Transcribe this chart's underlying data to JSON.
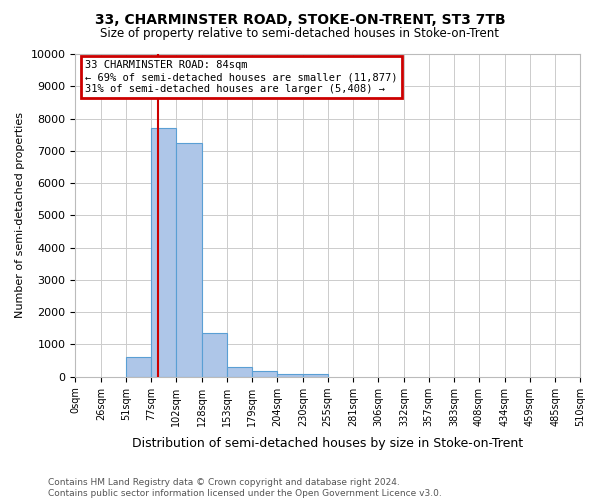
{
  "title": "33, CHARMINSTER ROAD, STOKE-ON-TRENT, ST3 7TB",
  "subtitle": "Size of property relative to semi-detached houses in Stoke-on-Trent",
  "xlabel": "Distribution of semi-detached houses by size in Stoke-on-Trent",
  "ylabel": "Number of semi-detached properties",
  "annotation_line1": "33 CHARMINSTER ROAD: 84sqm",
  "annotation_line2": "← 69% of semi-detached houses are smaller (11,877)",
  "annotation_line3": "31% of semi-detached houses are larger (5,408) →",
  "footnote1": "Contains HM Land Registry data © Crown copyright and database right 2024.",
  "footnote2": "Contains public sector information licensed under the Open Government Licence v3.0.",
  "property_size": 84,
  "bar_edges": [
    0,
    26,
    51,
    77,
    102,
    128,
    153,
    179,
    204,
    230,
    255,
    281,
    306,
    332,
    357,
    383,
    408,
    434,
    459,
    485,
    510
  ],
  "bar_heights": [
    0,
    0,
    600,
    7700,
    7250,
    1350,
    300,
    170,
    80,
    70,
    0,
    0,
    0,
    0,
    0,
    0,
    0,
    0,
    0,
    0
  ],
  "bar_color": "#aec6e8",
  "bar_edge_color": "#5a9fd4",
  "vline_color": "#cc0000",
  "annotation_box_color": "#cc0000",
  "background_color": "#ffffff",
  "grid_color": "#cccccc",
  "ylim": [
    0,
    10000
  ],
  "yticks": [
    0,
    1000,
    2000,
    3000,
    4000,
    5000,
    6000,
    7000,
    8000,
    9000,
    10000
  ],
  "xtick_labels": [
    "0sqm",
    "26sqm",
    "51sqm",
    "77sqm",
    "102sqm",
    "128sqm",
    "153sqm",
    "179sqm",
    "204sqm",
    "230sqm",
    "255sqm",
    "281sqm",
    "306sqm",
    "332sqm",
    "357sqm",
    "383sqm",
    "408sqm",
    "434sqm",
    "459sqm",
    "485sqm",
    "510sqm"
  ]
}
